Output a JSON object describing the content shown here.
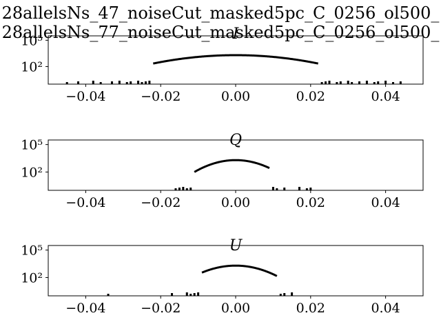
{
  "figure": {
    "title_lines": [
      "28allelsNs_47_noiseCut_masked5pc_C_0256_ol500_",
      "28allelsNs_77_noiseCut_masked5pc_C_0256_ol500_"
    ]
  },
  "chart_data": [
    {
      "type": "histogram",
      "title": "I",
      "xlim": [
        -0.05,
        0.05
      ],
      "ylim_log10": [
        0.0,
        5.5
      ],
      "yscale": "log",
      "xticks": [
        -0.04,
        -0.02,
        0.0,
        0.02,
        0.04
      ],
      "xtick_labels": [
        "−0.04",
        "−0.02",
        "0.00",
        "0.02",
        "0.04"
      ],
      "yticks_log10": [
        2,
        5
      ],
      "ytick_labels": [
        "10²",
        "10⁵"
      ],
      "grid": false,
      "peak_count": 2000,
      "core_sigma": 0.0105,
      "core_range": [
        -0.022,
        0.022
      ],
      "sparse_outliers": [
        -0.045,
        -0.042,
        -0.038,
        -0.036,
        -0.033,
        -0.031,
        -0.029,
        -0.028,
        -0.026,
        -0.025,
        -0.024,
        -0.023,
        0.023,
        0.024,
        0.025,
        0.027,
        0.028,
        0.03,
        0.031,
        0.033,
        0.035,
        0.037,
        0.038,
        0.04,
        0.042,
        0.044
      ]
    },
    {
      "type": "histogram",
      "title": "Q",
      "xlim": [
        -0.05,
        0.05
      ],
      "ylim_log10": [
        0.0,
        5.5
      ],
      "yscale": "log",
      "xticks": [
        -0.04,
        -0.02,
        0.0,
        0.02,
        0.04
      ],
      "xtick_labels": [
        "−0.04",
        "−0.02",
        "0.00",
        "0.02",
        "0.04"
      ],
      "yticks_log10": [
        2,
        5
      ],
      "ytick_labels": [
        "10²",
        "10⁵"
      ],
      "grid": false,
      "peak_count": 2000,
      "core_sigma": 0.0045,
      "core_range": [
        -0.011,
        0.009
      ],
      "sparse_outliers": [
        -0.016,
        -0.015,
        -0.014,
        -0.013,
        -0.012,
        0.01,
        0.011,
        0.013,
        0.017,
        0.019,
        0.02
      ]
    },
    {
      "type": "histogram",
      "title": "U",
      "xlim": [
        -0.05,
        0.05
      ],
      "ylim_log10": [
        0.0,
        5.5
      ],
      "yscale": "log",
      "xticks": [
        -0.04,
        -0.02,
        0.0,
        0.02,
        0.04
      ],
      "xtick_labels": [
        "−0.04",
        "−0.02",
        "0.00",
        "0.02",
        "0.04"
      ],
      "yticks_log10": [
        2,
        5
      ],
      "ytick_labels": [
        "10²",
        "10⁵"
      ],
      "grid": false,
      "peak_count": 2000,
      "core_sigma": 0.0048,
      "core_range": [
        -0.009,
        0.011
      ],
      "sparse_outliers": [
        -0.034,
        -0.017,
        -0.013,
        -0.012,
        -0.011,
        -0.01,
        0.012,
        0.013,
        0.015
      ]
    }
  ]
}
